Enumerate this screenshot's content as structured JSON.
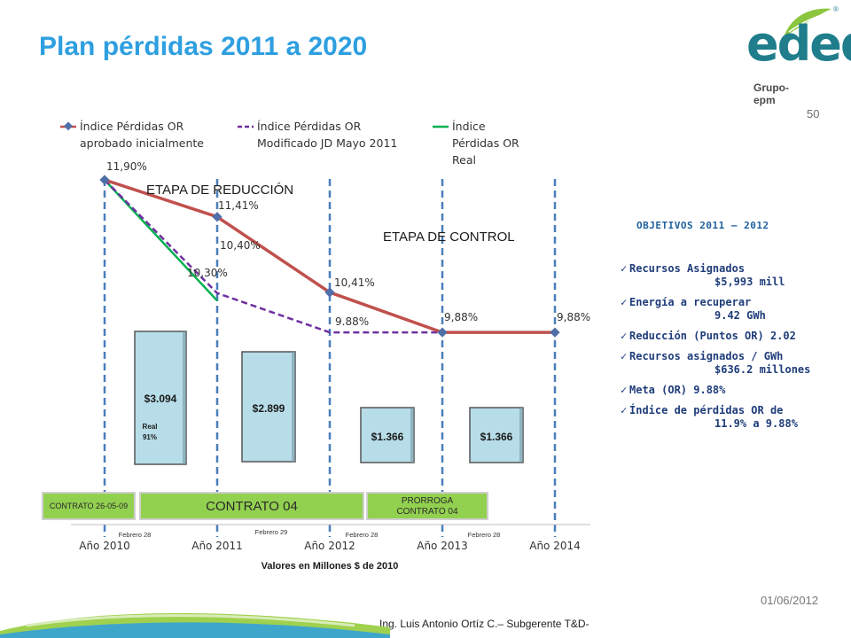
{
  "title": "Plan pérdidas 2011 a 2020",
  "page_number": "50",
  "logo": {
    "name": "edeq",
    "group": "Grupo-epm",
    "registered": "®"
  },
  "date": "01/06/2012",
  "footer": "Ing. Luis Antonio Ortíz C.– Subgerente T&D-",
  "objectives": {
    "title": "OBJETIVOS 2011 – 2012",
    "items": [
      {
        "label": "Recursos Asignados",
        "value": "$5,993 mill"
      },
      {
        "label": "Energía a recuperar",
        "value": "9.42 GWh"
      },
      {
        "label": "Reducción (Puntos OR) 2.02",
        "value": ""
      },
      {
        "label": "Recursos asignados / GWh",
        "value": "$636.2 millones"
      },
      {
        "label": "Meta (OR) 9.88%",
        "value": ""
      },
      {
        "label": "Índice de pérdidas OR de",
        "value": "11.9% a 9.88%"
      }
    ]
  },
  "colors": {
    "title": "#2e9fe0",
    "approved": "#c0504d",
    "modified": "#7030a0",
    "real": "#00b050",
    "bars": "#b7dde8",
    "contract": "#92d050",
    "vlines": "#4a7ebb"
  },
  "chart_data": {
    "type": "line",
    "categories": [
      "Año 2010",
      "Año 2011",
      "Año 2012",
      "Año 2013",
      "Año 2014"
    ],
    "xlabel": "Valores en Millones $ de 2010",
    "series": [
      {
        "name": "Índice Pérdidas OR aprobado inicialmente",
        "style": "solid",
        "values": [
          11.9,
          11.41,
          10.41,
          9.88,
          9.88
        ],
        "labels": [
          "11,90%",
          "11,41%",
          "10,41%",
          "9,88%",
          "9,88%"
        ]
      },
      {
        "name": "Índice Pérdidas OR Modificado JD Mayo 2011",
        "style": "dashed",
        "values": [
          11.9,
          10.4,
          9.88,
          9.88,
          null
        ],
        "labels": [
          "",
          "10,40%",
          "9.88%",
          "",
          ""
        ]
      },
      {
        "name": "Índice Pérdidas OR Real",
        "style": "solid",
        "values": [
          11.9,
          10.3,
          null,
          null,
          null
        ],
        "labels": [
          "",
          "10,30%",
          "",
          "",
          ""
        ]
      }
    ],
    "legend_lines": [
      [
        "Índice Pérdidas  OR",
        "aprobado inicialmente"
      ],
      [
        "Índice Pérdidas OR",
        "Modificado JD Mayo 2011"
      ],
      [
        "Índice",
        "Pérdidas OR",
        "Real"
      ]
    ],
    "bars": [
      {
        "label": "$3.094",
        "note": [
          "Real",
          "91%"
        ],
        "value": 3094
      },
      {
        "label": "$2.899",
        "note": [],
        "value": 2899
      },
      {
        "label": "$1.366",
        "note": [],
        "value": 1366
      },
      {
        "label": "$1.366",
        "note": [],
        "value": 1366
      }
    ],
    "stages": [
      "ETAPA DE REDUCCIÓN",
      "ETAPA DE CONTROL"
    ],
    "contracts": [
      "CONTRATO 26-05-09",
      "CONTRATO 04",
      "PRORROGA CONTRATO 04"
    ],
    "period_markers": [
      "Febrero 28",
      "Febrero 29",
      "Febrero 28",
      "Febrero 28"
    ],
    "legend_position": "top"
  }
}
